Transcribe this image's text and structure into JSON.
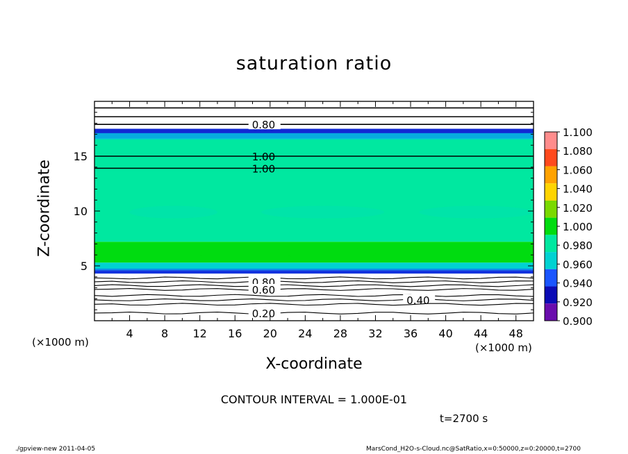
{
  "chart_data": {
    "type": "heatmap",
    "title": "saturation ratio",
    "xlabel": "X-coordinate",
    "ylabel": "Z-coordinate",
    "x_unit": "(×1000 m)",
    "xlim": [
      0,
      50
    ],
    "ylim": [
      0,
      20
    ],
    "x_ticks": [
      4,
      8,
      12,
      16,
      20,
      24,
      28,
      32,
      36,
      40,
      44,
      48
    ],
    "y_ticks": [
      5,
      10,
      15
    ],
    "colorbar": {
      "levels": [
        "0.900",
        "0.920",
        "0.940",
        "0.960",
        "0.980",
        "1.000",
        "1.020",
        "1.040",
        "1.060",
        "1.080",
        "1.100"
      ],
      "colors": [
        "#6a0dad",
        "#0b0bb5",
        "#1a55ff",
        "#00d2d2",
        "#00e8a0",
        "#00dc10",
        "#7ad900",
        "#ffd400",
        "#ffa200",
        "#ff4a1e",
        "#ff8c8c"
      ]
    },
    "field_bands": [
      {
        "z_from": 0.0,
        "z_to": 4.3,
        "value": "below 0.900"
      },
      {
        "z_from": 4.3,
        "z_to": 4.6,
        "value": "0.900-0.940"
      },
      {
        "z_from": 4.6,
        "z_to": 5.3,
        "value": "0.960-0.980"
      },
      {
        "z_from": 5.3,
        "z_to": 7.2,
        "value": "1.000"
      },
      {
        "z_from": 7.2,
        "z_to": 16.6,
        "value": "0.980"
      },
      {
        "z_from": 16.6,
        "z_to": 17.5,
        "value": "0.900-0.960"
      },
      {
        "z_from": 17.5,
        "z_to": 20.0,
        "value": "below 0.900"
      }
    ],
    "contour_lines": [
      {
        "z": 19.4,
        "label": ""
      },
      {
        "z": 18.6,
        "label": ""
      },
      {
        "z": 17.9,
        "label": "0.80",
        "label_x": 17.7
      },
      {
        "z": 15.0,
        "label": "1.00",
        "label_x": 17.7
      },
      {
        "z": 13.9,
        "label": "1.00",
        "label_x": 17.7
      },
      {
        "z": 3.9,
        "label": ""
      },
      {
        "z": 3.55,
        "label": "0.80",
        "label_x": 17.7
      },
      {
        "z": 3.2,
        "label": ""
      },
      {
        "z": 2.85,
        "label": "0.60",
        "label_x": 17.7
      },
      {
        "z": 2.3,
        "label": ""
      },
      {
        "z": 1.9,
        "label": "0.40",
        "label_x": 35.3
      },
      {
        "z": 1.5,
        "label": ""
      },
      {
        "z": 0.7,
        "label": "0.20",
        "label_x": 17.7
      }
    ],
    "contour_interval": "CONTOUR INTERVAL = 1.000E-01",
    "time": "t=2700 s"
  },
  "footer": {
    "left": "./gpview-new  2011-04-05",
    "right": "MarsCond_H2O-s-Cloud.nc@SatRatio,x=0:50000,z=0:20000,t=2700"
  }
}
